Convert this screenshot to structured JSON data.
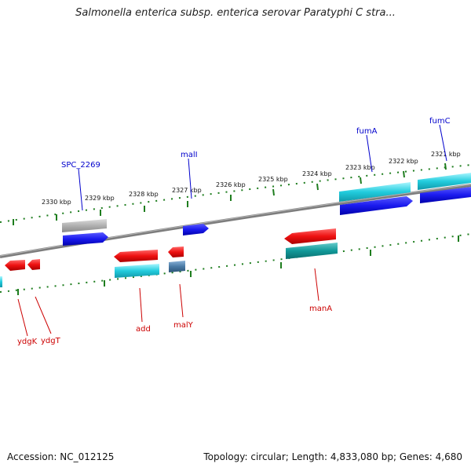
{
  "title": "Salmonella enterica subsp. enterica serovar Paratyphi C stra...",
  "accession": "Accession: NC_012125",
  "summary": "Topology: circular; Length: 4,833,080 bp; Genes: 4,680",
  "ruler_labels": [
    "2321 kbp",
    "2322 kbp",
    "2323 kbp",
    "2324 kbp",
    "2325 kbp",
    "2326 kbp",
    "2327 kbp",
    "2328 kbp",
    "2329 kbp",
    "2330 kbp"
  ],
  "genes_top": [
    "SPC_2269",
    "malI",
    "fumA",
    "fumC"
  ],
  "genes_bottom": [
    "ydgK",
    "ydgT",
    "add",
    "malY",
    "manA"
  ],
  "colors": {
    "backbone": "#808080",
    "ruler": "#1e7d1e",
    "label_top": "#0000cc",
    "label_bottom": "#cc0000",
    "red": "#ee1111",
    "blue": "#1a1aee",
    "cyan": "#22ccdd",
    "teal": "#119999",
    "gray": "#b0b0b0",
    "steel": "#4a7aa5"
  }
}
